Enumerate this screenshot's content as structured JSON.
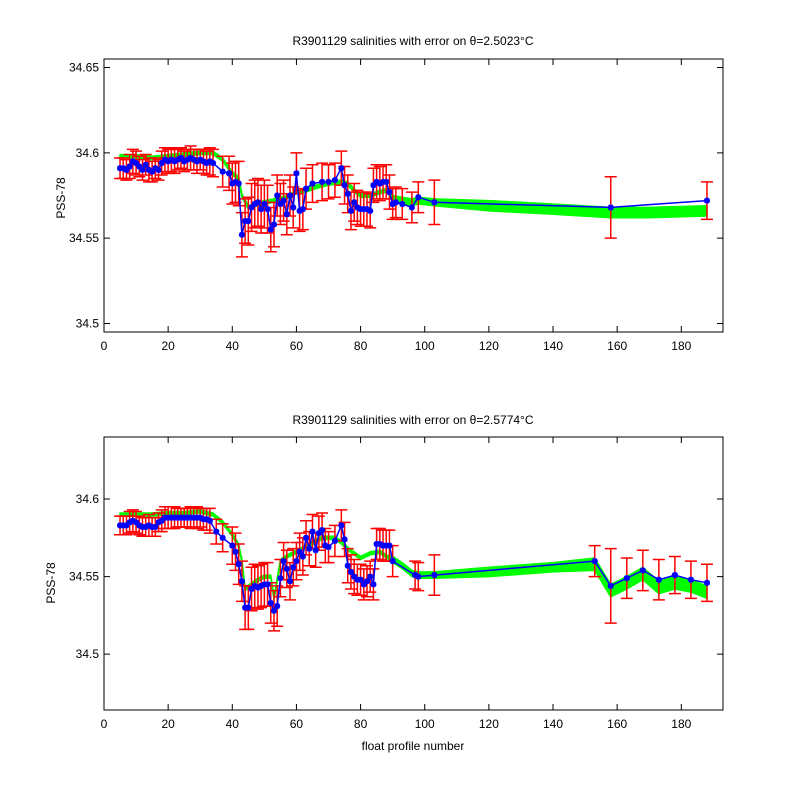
{
  "chart_data": [
    {
      "type": "line",
      "title": "R3901129 salinities with error on θ=2.5023°C",
      "xlabel": "",
      "ylabel": "PSS-78",
      "xlim": [
        0,
        193
      ],
      "ylim": [
        34.495,
        34.655
      ],
      "xticks": [
        "0",
        "20",
        "40",
        "60",
        "80",
        "100",
        "120",
        "140",
        "160",
        "180"
      ],
      "yticks": [
        "34.5",
        "34.55",
        "34.6",
        "34.65"
      ],
      "grid": false,
      "colors": {
        "measured": "#0000ff",
        "mapped": "#00ff00",
        "error": "#ff0000"
      },
      "series": [
        {
          "role": "measured",
          "x": [
            5,
            6,
            7,
            8,
            9,
            10,
            11,
            12,
            13,
            14,
            15,
            16,
            17,
            18,
            19,
            20,
            21,
            22,
            23,
            24,
            25,
            26,
            27,
            28,
            29,
            30,
            31,
            32,
            33,
            34,
            37,
            39,
            40,
            41,
            42,
            43,
            44,
            45,
            46,
            47,
            48,
            49,
            50,
            51,
            52,
            53,
            54,
            55,
            56,
            57,
            58,
            59,
            60,
            61,
            62,
            63,
            65,
            68,
            70,
            72,
            74,
            75,
            76,
            77,
            78,
            79,
            80,
            81,
            82,
            83,
            84,
            85,
            86,
            87,
            88,
            89,
            90,
            91,
            93,
            96,
            98,
            103,
            158,
            188
          ],
          "y": [
            34.591,
            34.591,
            34.59,
            34.592,
            34.595,
            34.594,
            34.592,
            34.59,
            34.593,
            34.59,
            34.589,
            34.591,
            34.59,
            34.594,
            34.596,
            34.595,
            34.596,
            34.595,
            34.596,
            34.597,
            34.595,
            34.596,
            34.597,
            34.596,
            34.595,
            34.596,
            34.595,
            34.594,
            34.595,
            34.594,
            34.589,
            34.588,
            34.582,
            34.583,
            34.582,
            34.552,
            34.56,
            34.56,
            34.568,
            34.57,
            34.571,
            34.567,
            34.57,
            34.567,
            34.555,
            34.558,
            34.575,
            34.57,
            34.572,
            34.564,
            34.575,
            34.568,
            34.588,
            34.566,
            34.567,
            34.579,
            34.582,
            34.583,
            34.583,
            34.584,
            34.591,
            34.581,
            34.576,
            34.566,
            34.571,
            34.568,
            34.567,
            34.567,
            34.567,
            34.566,
            34.581,
            34.583,
            34.582,
            34.583,
            34.583,
            34.577,
            34.57,
            34.571,
            34.57,
            34.568,
            34.574,
            34.571,
            34.568,
            34.572
          ],
          "errors": [
            0.006,
            0.006,
            0.006,
            0.007,
            0.007,
            0.007,
            0.006,
            0.006,
            0.006,
            0.007,
            0.006,
            0.006,
            0.006,
            0.007,
            0.007,
            0.007,
            0.007,
            0.007,
            0.006,
            0.006,
            0.006,
            0.006,
            0.007,
            0.006,
            0.007,
            0.006,
            0.007,
            0.007,
            0.008,
            0.008,
            0.009,
            0.01,
            0.012,
            0.012,
            0.013,
            0.013,
            0.013,
            0.014,
            0.014,
            0.014,
            0.014,
            0.014,
            0.014,
            0.014,
            0.013,
            0.013,
            0.012,
            0.012,
            0.012,
            0.012,
            0.012,
            0.012,
            0.012,
            0.012,
            0.012,
            0.012,
            0.011,
            0.011,
            0.01,
            0.01,
            0.01,
            0.011,
            0.011,
            0.011,
            0.011,
            0.01,
            0.01,
            0.01,
            0.01,
            0.01,
            0.01,
            0.01,
            0.01,
            0.01,
            0.01,
            0.01,
            0.009,
            0.009,
            0.009,
            0.009,
            0.009,
            0.013,
            0.018,
            0.011
          ]
        },
        {
          "role": "mapped",
          "x": [
            5,
            10,
            15,
            20,
            25,
            30,
            34,
            37,
            40,
            42,
            43,
            45,
            48,
            50,
            53,
            55,
            57,
            60,
            63,
            66,
            70,
            74,
            76,
            78,
            80,
            83,
            86,
            88,
            90,
            93,
            96,
            98,
            103,
            120,
            140,
            158,
            170,
            188
          ],
          "y": [
            34.598,
            34.598,
            34.597,
            34.598,
            34.599,
            34.6,
            34.6,
            34.596,
            34.588,
            34.585,
            34.575,
            34.568,
            34.57,
            34.571,
            34.572,
            34.573,
            34.574,
            34.577,
            34.578,
            34.58,
            34.582,
            34.583,
            34.582,
            34.578,
            34.575,
            34.575,
            34.577,
            34.578,
            34.574,
            34.572,
            34.571,
            34.572,
            34.571,
            34.569,
            34.567,
            34.565,
            34.565,
            34.566
          ],
          "half_width": [
            0.001,
            0.001,
            0.001,
            0.001,
            0.001,
            0.001,
            0.001,
            0.001,
            0.001,
            0.001,
            0.001,
            0.001,
            0.001,
            0.001,
            0.001,
            0.001,
            0.001,
            0.001,
            0.001,
            0.001,
            0.001,
            0.001,
            0.001,
            0.001,
            0.001,
            0.001,
            0.001,
            0.001,
            0.001,
            0.002,
            0.002,
            0.002,
            0.002,
            0.003,
            0.003,
            0.003,
            0.003,
            0.003
          ]
        }
      ]
    },
    {
      "type": "line",
      "title": "R3901129 salinities with error on θ=2.5774°C",
      "xlabel": "float profile number",
      "ylabel": "PSS-78",
      "xlim": [
        0,
        193
      ],
      "ylim": [
        34.464,
        34.64
      ],
      "xticks": [
        "0",
        "20",
        "40",
        "60",
        "80",
        "100",
        "120",
        "140",
        "160",
        "180"
      ],
      "yticks": [
        "34.5",
        "34.55",
        "34.6"
      ],
      "grid": false,
      "colors": {
        "measured": "#0000ff",
        "mapped": "#00ff00",
        "error": "#ff0000"
      },
      "series": [
        {
          "role": "measured",
          "x": [
            5,
            6,
            7,
            8,
            9,
            10,
            11,
            12,
            13,
            14,
            15,
            16,
            17,
            18,
            19,
            20,
            21,
            22,
            23,
            24,
            25,
            26,
            27,
            28,
            29,
            30,
            31,
            32,
            33,
            35,
            37,
            40,
            41,
            42,
            43,
            44,
            45,
            46,
            47,
            48,
            49,
            50,
            51,
            52,
            53,
            54,
            55,
            56,
            57,
            58,
            59,
            60,
            61,
            62,
            63,
            64,
            65,
            66,
            67,
            68,
            69,
            70,
            72,
            74,
            75,
            76,
            77,
            78,
            79,
            80,
            81,
            82,
            83,
            84,
            85,
            86,
            87,
            88,
            89,
            90,
            97,
            98,
            103,
            153,
            158,
            163,
            168,
            173,
            178,
            183,
            188
          ],
          "y": [
            34.583,
            34.583,
            34.583,
            34.585,
            34.586,
            34.585,
            34.583,
            34.582,
            34.582,
            34.583,
            34.582,
            34.582,
            34.585,
            34.586,
            34.588,
            34.588,
            34.588,
            34.588,
            34.588,
            34.588,
            34.588,
            34.588,
            34.588,
            34.588,
            34.588,
            34.588,
            34.587,
            34.587,
            34.586,
            34.579,
            34.575,
            34.57,
            34.566,
            34.558,
            34.547,
            34.53,
            34.53,
            34.542,
            34.544,
            34.543,
            34.544,
            34.545,
            34.545,
            34.533,
            34.528,
            34.531,
            34.549,
            34.56,
            34.555,
            34.547,
            34.556,
            34.56,
            34.566,
            34.563,
            34.575,
            34.568,
            34.579,
            34.567,
            34.578,
            34.58,
            34.57,
            34.569,
            34.573,
            34.583,
            34.574,
            34.557,
            34.553,
            34.55,
            34.548,
            34.548,
            34.545,
            34.547,
            34.55,
            34.545,
            34.571,
            34.571,
            34.57,
            34.57,
            34.57,
            34.56,
            34.551,
            34.55,
            34.551,
            34.56,
            34.544,
            34.549,
            34.554,
            34.548,
            34.551,
            34.548,
            34.546
          ],
          "errors": [
            0.006,
            0.006,
            0.006,
            0.007,
            0.007,
            0.007,
            0.006,
            0.006,
            0.006,
            0.007,
            0.006,
            0.006,
            0.006,
            0.007,
            0.007,
            0.007,
            0.007,
            0.007,
            0.006,
            0.006,
            0.006,
            0.006,
            0.007,
            0.006,
            0.007,
            0.006,
            0.007,
            0.007,
            0.008,
            0.008,
            0.009,
            0.012,
            0.012,
            0.013,
            0.013,
            0.014,
            0.014,
            0.014,
            0.014,
            0.014,
            0.014,
            0.014,
            0.014,
            0.013,
            0.013,
            0.013,
            0.012,
            0.012,
            0.012,
            0.012,
            0.012,
            0.012,
            0.012,
            0.012,
            0.011,
            0.011,
            0.011,
            0.011,
            0.011,
            0.011,
            0.011,
            0.01,
            0.01,
            0.01,
            0.011,
            0.011,
            0.011,
            0.011,
            0.01,
            0.01,
            0.01,
            0.01,
            0.01,
            0.01,
            0.01,
            0.01,
            0.01,
            0.01,
            0.01,
            0.01,
            0.009,
            0.009,
            0.013,
            0.01,
            0.024,
            0.013,
            0.013,
            0.013,
            0.012,
            0.012,
            0.012
          ]
        },
        {
          "role": "mapped",
          "x": [
            5,
            10,
            15,
            20,
            25,
            30,
            34,
            37,
            40,
            42,
            43,
            44,
            46,
            48,
            50,
            52,
            53,
            55,
            57,
            60,
            62,
            64,
            66,
            68,
            70,
            72,
            74,
            76,
            78,
            80,
            83,
            86,
            88,
            90,
            93,
            96,
            98,
            103,
            120,
            140,
            153,
            158,
            163,
            168,
            173,
            178,
            183,
            188
          ],
          "y": [
            34.59,
            34.59,
            34.59,
            34.591,
            34.591,
            34.592,
            34.59,
            34.585,
            34.577,
            34.57,
            34.56,
            34.542,
            34.545,
            34.548,
            34.55,
            34.55,
            34.536,
            34.56,
            34.563,
            34.566,
            34.568,
            34.57,
            34.573,
            34.575,
            34.575,
            34.575,
            34.572,
            34.568,
            34.565,
            34.562,
            34.565,
            34.566,
            34.563,
            34.561,
            34.557,
            34.552,
            34.551,
            34.551,
            34.553,
            34.556,
            34.558,
            34.541,
            34.546,
            34.552,
            34.543,
            34.546,
            34.544,
            34.54
          ],
          "half_width": [
            0.001,
            0.001,
            0.001,
            0.001,
            0.001,
            0.001,
            0.001,
            0.001,
            0.001,
            0.001,
            0.001,
            0.001,
            0.001,
            0.001,
            0.001,
            0.001,
            0.001,
            0.001,
            0.001,
            0.001,
            0.001,
            0.001,
            0.001,
            0.001,
            0.001,
            0.001,
            0.001,
            0.001,
            0.001,
            0.001,
            0.001,
            0.001,
            0.001,
            0.002,
            0.002,
            0.002,
            0.002,
            0.002,
            0.003,
            0.003,
            0.004,
            0.004,
            0.004,
            0.004,
            0.004,
            0.004,
            0.004,
            0.004
          ]
        }
      ]
    }
  ]
}
